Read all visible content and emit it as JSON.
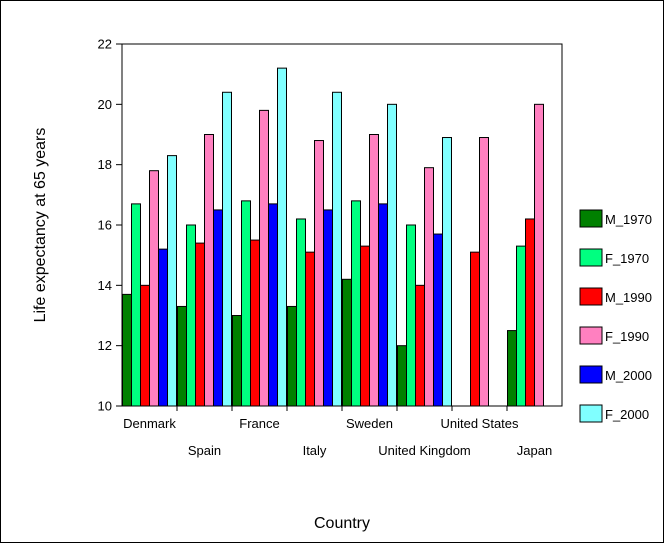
{
  "chart_data": {
    "type": "bar",
    "xlabel": "Country",
    "ylabel": "Life expectancy at 65 years",
    "ylim": [
      10,
      22
    ],
    "yticks": [
      10,
      12,
      14,
      16,
      18,
      20,
      22
    ],
    "grid": false,
    "legend_position": "right",
    "categories": [
      "Denmark",
      "Spain",
      "France",
      "Italy",
      "Sweden",
      "United Kingdom",
      "United States",
      "Japan"
    ],
    "series": [
      {
        "name": "M_1970",
        "color": "#008000",
        "values": [
          13.7,
          13.3,
          13.0,
          13.3,
          14.2,
          12.0,
          null,
          12.5
        ]
      },
      {
        "name": "F_1970",
        "color": "#00ff80",
        "values": [
          16.7,
          16.0,
          16.8,
          16.2,
          16.8,
          16.0,
          null,
          15.3
        ]
      },
      {
        "name": "M_1990",
        "color": "#ff0000",
        "values": [
          14.0,
          15.4,
          15.5,
          15.1,
          15.3,
          14.0,
          15.1,
          16.2
        ]
      },
      {
        "name": "F_1990",
        "color": "#ff80c0",
        "values": [
          17.8,
          19.0,
          19.8,
          18.8,
          19.0,
          17.9,
          18.9,
          20.0
        ]
      },
      {
        "name": "M_2000",
        "color": "#0000ff",
        "values": [
          15.2,
          16.5,
          16.7,
          16.5,
          16.7,
          15.7,
          null,
          null
        ]
      },
      {
        "name": "F_2000",
        "color": "#80ffff",
        "values": [
          18.3,
          20.4,
          21.2,
          20.4,
          20.0,
          18.9,
          null,
          null
        ]
      }
    ]
  }
}
